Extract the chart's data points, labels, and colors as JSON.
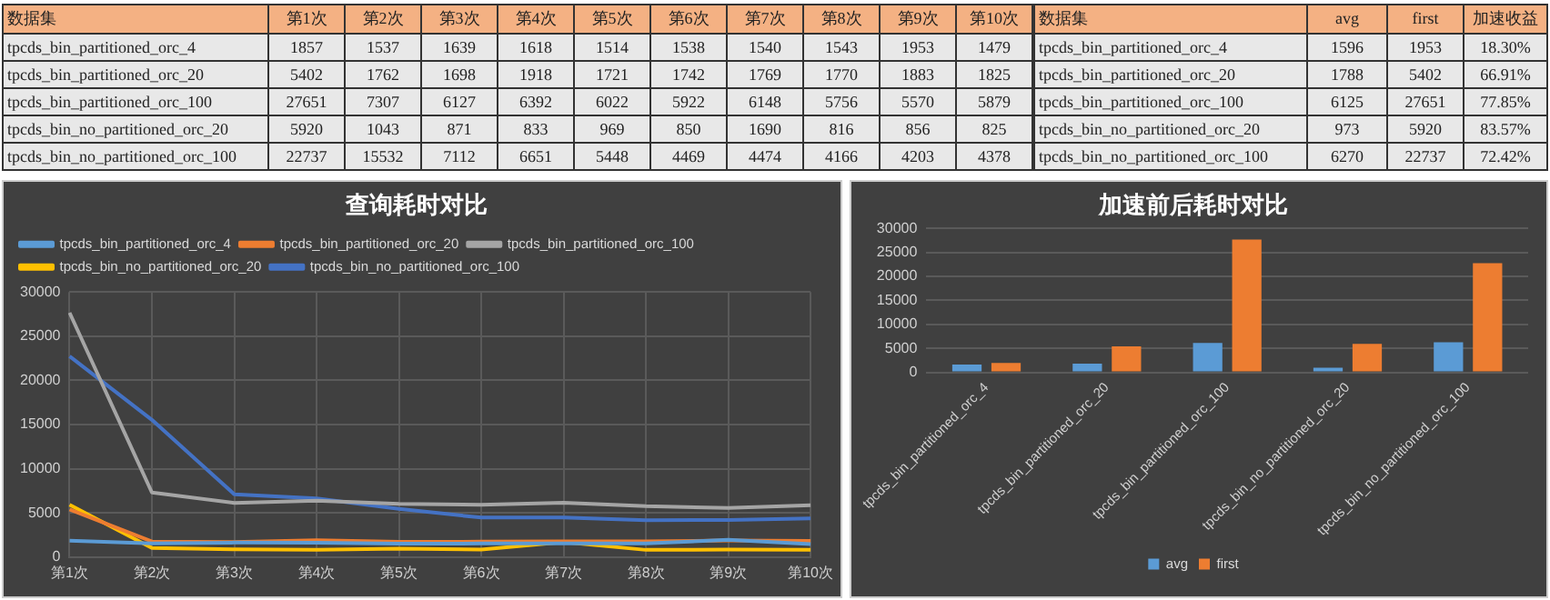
{
  "chart_data": [
    {
      "type": "other",
      "ylabel": "数据集",
      "categories": [
        "第1次",
        "第2次",
        "第3次",
        "第4次",
        "第5次",
        "第6次",
        "第7次",
        "第8次",
        "第9次",
        "第10次"
      ],
      "y_categories": [
        "tpcds_bin_partitioned_orc_4",
        "tpcds_bin_partitioned_orc_20",
        "tpcds_bin_partitioned_orc_100",
        "tpcds_bin_no_partitioned_orc_20",
        "tpcds_bin_no_partitioned_orc_100"
      ],
      "cell_labels": [
        [
          "1857",
          "1537",
          "1639",
          "1618",
          "1514",
          "1538",
          "1540",
          "1543",
          "1953",
          "1479"
        ],
        [
          "5402",
          "1762",
          "1698",
          "1918",
          "1721",
          "1742",
          "1769",
          "1770",
          "1883",
          "1825"
        ],
        [
          "27651",
          "7307",
          "6127",
          "6392",
          "6022",
          "5922",
          "6148",
          "5756",
          "5570",
          "5879"
        ],
        [
          "5920",
          "1043",
          "871",
          "833",
          "969",
          "850",
          "1690",
          "816",
          "856",
          "825"
        ],
        [
          "22737",
          "15532",
          "7112",
          "6651",
          "5448",
          "4469",
          "4474",
          "4166",
          "4203",
          "4378"
        ]
      ]
    },
    {
      "type": "other",
      "ylabel": "数据集",
      "categories": [
        "avg",
        "first",
        "加速收益"
      ],
      "y_categories": [
        "tpcds_bin_partitioned_orc_4",
        "tpcds_bin_partitioned_orc_20",
        "tpcds_bin_partitioned_orc_100",
        "tpcds_bin_no_partitioned_orc_20",
        "tpcds_bin_no_partitioned_orc_100"
      ],
      "cell_labels": [
        [
          "1596",
          "1953",
          "18.30%"
        ],
        [
          "1788",
          "5402",
          "66.91%"
        ],
        [
          "6125",
          "27651",
          "77.85%"
        ],
        [
          "973",
          "5920",
          "83.57%"
        ],
        [
          "6270",
          "22737",
          "72.42%"
        ]
      ]
    },
    {
      "type": "line",
      "title": "查询耗时对比",
      "categories": [
        "第1次",
        "第2次",
        "第3次",
        "第4次",
        "第5次",
        "第6次",
        "第7次",
        "第8次",
        "第9次",
        "第10次"
      ],
      "series": [
        {
          "name": "tpcds_bin_partitioned_orc_4",
          "color": "#5b9bd5",
          "values": [
            1857,
            1537,
            1639,
            1618,
            1514,
            1538,
            1540,
            1543,
            1953,
            1479
          ]
        },
        {
          "name": "tpcds_bin_partitioned_orc_20",
          "color": "#ed7d31",
          "values": [
            5402,
            1762,
            1698,
            1918,
            1721,
            1742,
            1769,
            1770,
            1883,
            1825
          ]
        },
        {
          "name": "tpcds_bin_partitioned_orc_100",
          "color": "#a5a5a5",
          "values": [
            27651,
            7307,
            6127,
            6392,
            6022,
            5922,
            6148,
            5756,
            5570,
            5879
          ]
        },
        {
          "name": "tpcds_bin_no_partitioned_orc_20",
          "color": "#ffc000",
          "values": [
            5920,
            1043,
            871,
            833,
            969,
            850,
            1690,
            816,
            856,
            825
          ]
        },
        {
          "name": "tpcds_bin_no_partitioned_orc_100",
          "color": "#4472c4",
          "values": [
            22737,
            15532,
            7112,
            6651,
            5448,
            4469,
            4474,
            4166,
            4203,
            4378
          ]
        }
      ],
      "ylim": [
        0,
        30000
      ],
      "yticks": [
        0,
        5000,
        10000,
        15000,
        20000,
        25000,
        30000
      ],
      "grid": true,
      "legend": "top",
      "marker": "none"
    },
    {
      "type": "bar",
      "title": "加速前后耗时对比",
      "categories": [
        "tpcds_bin_partitioned_orc_4",
        "tpcds_bin_partitioned_orc_20",
        "tpcds_bin_partitioned_orc_100",
        "tpcds_bin_no_partitioned_orc_20",
        "tpcds_bin_no_partitioned_orc_100"
      ],
      "series": [
        {
          "name": "avg",
          "color": "#5b9bd5",
          "values": [
            1596,
            1788,
            6125,
            973,
            6270
          ]
        },
        {
          "name": "first",
          "color": "#ed7d31",
          "values": [
            1953,
            5402,
            27651,
            5920,
            22737
          ]
        }
      ],
      "ylim": [
        0,
        30000
      ],
      "yticks": [
        0,
        5000,
        10000,
        15000,
        20000,
        25000,
        30000
      ],
      "grid": "y",
      "legend": "bottom"
    }
  ]
}
